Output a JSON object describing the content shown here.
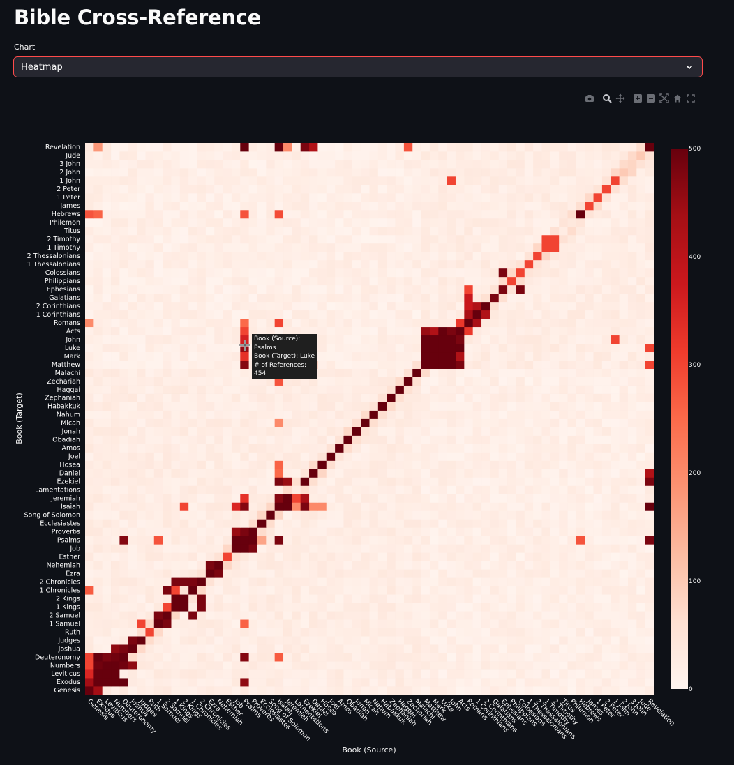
{
  "page": {
    "title": "Bible Cross-Reference"
  },
  "controls": {
    "chart_select": {
      "label": "Chart",
      "value": "Heatmap"
    }
  },
  "modebar": {
    "icons": [
      "camera-icon",
      "zoom-icon",
      "pan-icon",
      "zoom-in-icon",
      "zoom-out-icon",
      "autoscale-icon",
      "home-icon",
      "fullscreen-icon"
    ]
  },
  "tooltip": {
    "source_line": "Book (Source): Psalms",
    "target_line": "Book (Target): Luke",
    "count_line": "# of References: 454"
  },
  "chart_data": {
    "type": "heatmap",
    "xlabel": "Book (Source)",
    "ylabel": "Book (Target)",
    "books": [
      "Genesis",
      "Exodus",
      "Leviticus",
      "Numbers",
      "Deuteronomy",
      "Joshua",
      "Judges",
      "Ruth",
      "1 Samuel",
      "2 Samuel",
      "1 Kings",
      "2 Kings",
      "1 Chronicles",
      "2 Chronicles",
      "Ezra",
      "Nehemiah",
      "Esther",
      "Job",
      "Psalms",
      "Proverbs",
      "Ecclesiastes",
      "Song of Solomon",
      "Isaiah",
      "Jeremiah",
      "Lamentations",
      "Ezekiel",
      "Daniel",
      "Hosea",
      "Joel",
      "Amos",
      "Obadiah",
      "Jonah",
      "Micah",
      "Nahum",
      "Habakkuk",
      "Zephaniah",
      "Haggai",
      "Zechariah",
      "Malachi",
      "Matthew",
      "Mark",
      "Luke",
      "John",
      "Acts",
      "Romans",
      "1 Corinthians",
      "2 Corinthians",
      "Galatians",
      "Ephesians",
      "Philippians",
      "Colossians",
      "1 Thessalonians",
      "2 Thessalonians",
      "1 Timothy",
      "2 Timothy",
      "Titus",
      "Philemon",
      "Hebrews",
      "James",
      "1 Peter",
      "2 Peter",
      "1 John",
      "2 John",
      "3 John",
      "Jude",
      "Revelation"
    ],
    "zmin": 0,
    "zmax": 500,
    "colorbar_ticks": [
      0,
      100,
      200,
      300,
      400,
      500
    ],
    "colorscale": [
      "#fff5f0",
      "#fee0d2",
      "#fcbba1",
      "#fc9272",
      "#fb6a4a",
      "#ef3b2c",
      "#cb181d",
      "#a50f15",
      "#67000d"
    ],
    "grid": false,
    "cells": [
      [
        "Psalms",
        "Luke",
        454
      ],
      [
        "Psalms",
        "Mark",
        330
      ],
      [
        "Psalms",
        "Matthew",
        470
      ],
      [
        "Psalms",
        "John",
        360
      ],
      [
        "Psalms",
        "Acts",
        300
      ],
      [
        "Psalms",
        "Romans",
        250
      ],
      [
        "Psalms",
        "Hebrews",
        280
      ],
      [
        "Psalms",
        "Revelation",
        500
      ],
      [
        "Psalms",
        "Job",
        500
      ],
      [
        "Psalms",
        "Proverbs",
        480
      ],
      [
        "Psalms",
        "Isaiah",
        470
      ],
      [
        "Psalms",
        "Jeremiah",
        330
      ],
      [
        "Psalms",
        "Psalms",
        500
      ],
      [
        "Psalms",
        "1 Samuel",
        260
      ],
      [
        "Psalms",
        "Deuteronomy",
        470
      ],
      [
        "Psalms",
        "Exodus",
        460
      ],
      [
        "Job",
        "Psalms",
        500
      ],
      [
        "Job",
        "Proverbs",
        450
      ],
      [
        "Job",
        "Job",
        500
      ],
      [
        "Job",
        "Isaiah",
        350
      ],
      [
        "Proverbs",
        "Psalms",
        500
      ],
      [
        "Proverbs",
        "Job",
        480
      ],
      [
        "Proverbs",
        "Proverbs",
        500
      ],
      [
        "Ecclesiastes",
        "Psalms",
        160
      ],
      [
        "Ecclesiastes",
        "Ecclesiastes",
        500
      ],
      [
        "Song of Solomon",
        "Song of Solomon",
        500
      ],
      [
        "Song of Solomon",
        "Isaiah",
        80
      ],
      [
        "Isaiah",
        "Isaiah",
        500
      ],
      [
        "Isaiah",
        "Jeremiah",
        470
      ],
      [
        "Isaiah",
        "Ezekiel",
        480
      ],
      [
        "Isaiah",
        "Psalms",
        480
      ],
      [
        "Isaiah",
        "Revelation",
        500
      ],
      [
        "Isaiah",
        "Matthew",
        300
      ],
      [
        "Isaiah",
        "Romans",
        300
      ],
      [
        "Isaiah",
        "Luke",
        280
      ],
      [
        "Isaiah",
        "John",
        260
      ],
      [
        "Isaiah",
        "Deuteronomy",
        270
      ],
      [
        "Isaiah",
        "Zechariah",
        280
      ],
      [
        "Isaiah",
        "Hebrews",
        290
      ],
      [
        "Isaiah",
        "Micah",
        200
      ],
      [
        "Isaiah",
        "Daniel",
        250
      ],
      [
        "Isaiah",
        "Hosea",
        260
      ],
      [
        "Jeremiah",
        "Isaiah",
        500
      ],
      [
        "Jeremiah",
        "Jeremiah",
        500
      ],
      [
        "Jeremiah",
        "Ezekiel",
        450
      ],
      [
        "Jeremiah",
        "Revelation",
        200
      ],
      [
        "Lamentations",
        "Jeremiah",
        300
      ],
      [
        "Lamentations",
        "Isaiah",
        200
      ],
      [
        "Ezekiel",
        "Isaiah",
        480
      ],
      [
        "Ezekiel",
        "Jeremiah",
        430
      ],
      [
        "Ezekiel",
        "Ezekiel",
        500
      ],
      [
        "Ezekiel",
        "Revelation",
        480
      ],
      [
        "Daniel",
        "Daniel",
        500
      ],
      [
        "Daniel",
        "Revelation",
        420
      ],
      [
        "Daniel",
        "Matthew",
        150
      ],
      [
        "Daniel",
        "Isaiah",
        200
      ],
      [
        "Hosea",
        "Hosea",
        500
      ],
      [
        "Hosea",
        "Isaiah",
        200
      ],
      [
        "Joel",
        "Joel",
        500
      ],
      [
        "Amos",
        "Amos",
        500
      ],
      [
        "Obadiah",
        "Obadiah",
        500
      ],
      [
        "Jonah",
        "Jonah",
        500
      ],
      [
        "Micah",
        "Micah",
        500
      ],
      [
        "Nahum",
        "Nahum",
        500
      ],
      [
        "Habakkuk",
        "Habakkuk",
        500
      ],
      [
        "Zephaniah",
        "Zephaniah",
        500
      ],
      [
        "Haggai",
        "Haggai",
        500
      ],
      [
        "Zechariah",
        "Zechariah",
        500
      ],
      [
        "Zechariah",
        "Revelation",
        280
      ],
      [
        "Malachi",
        "Malachi",
        500
      ],
      [
        "Genesis",
        "Genesis",
        500
      ],
      [
        "Genesis",
        "Exodus",
        440
      ],
      [
        "Genesis",
        "Leviticus",
        350
      ],
      [
        "Genesis",
        "Numbers",
        300
      ],
      [
        "Genesis",
        "Deuteronomy",
        300
      ],
      [
        "Genesis",
        "1 Chronicles",
        270
      ],
      [
        "Genesis",
        "Hebrews",
        280
      ],
      [
        "Genesis",
        "Romans",
        200
      ],
      [
        "Exodus",
        "Exodus",
        500
      ],
      [
        "Exodus",
        "Leviticus",
        500
      ],
      [
        "Exodus",
        "Numbers",
        490
      ],
      [
        "Exodus",
        "Deuteronomy",
        500
      ],
      [
        "Exodus",
        "Genesis",
        440
      ],
      [
        "Exodus",
        "Hebrews",
        260
      ],
      [
        "Exodus",
        "Revelation",
        180
      ],
      [
        "Leviticus",
        "Leviticus",
        500
      ],
      [
        "Leviticus",
        "Exodus",
        500
      ],
      [
        "Leviticus",
        "Numbers",
        500
      ],
      [
        "Leviticus",
        "Deuteronomy",
        480
      ],
      [
        "Numbers",
        "Numbers",
        500
      ],
      [
        "Numbers",
        "Deuteronomy",
        490
      ],
      [
        "Numbers",
        "Exodus",
        500
      ],
      [
        "Numbers",
        "Leviticus",
        500
      ],
      [
        "Numbers",
        "Joshua",
        460
      ],
      [
        "Deuteronomy",
        "Deuteronomy",
        500
      ],
      [
        "Deuteronomy",
        "Joshua",
        480
      ],
      [
        "Deuteronomy",
        "Exodus",
        500
      ],
      [
        "Deuteronomy",
        "Psalms",
        470
      ],
      [
        "Deuteronomy",
        "Numbers",
        490
      ],
      [
        "Joshua",
        "Joshua",
        500
      ],
      [
        "Joshua",
        "Judges",
        480
      ],
      [
        "Joshua",
        "Numbers",
        460
      ],
      [
        "Judges",
        "Judges",
        500
      ],
      [
        "Judges",
        "1 Samuel",
        300
      ],
      [
        "Ruth",
        "Ruth",
        300
      ],
      [
        "1 Samuel",
        "1 Samuel",
        500
      ],
      [
        "1 Samuel",
        "2 Samuel",
        480
      ],
      [
        "1 Samuel",
        "Psalms",
        280
      ],
      [
        "2 Samuel",
        "2 Samuel",
        500
      ],
      [
        "2 Samuel",
        "1 Samuel",
        480
      ],
      [
        "2 Samuel",
        "1 Chronicles",
        480
      ],
      [
        "2 Samuel",
        "1 Kings",
        300
      ],
      [
        "1 Kings",
        "1 Kings",
        500
      ],
      [
        "1 Kings",
        "2 Kings",
        500
      ],
      [
        "1 Kings",
        "2 Chronicles",
        480
      ],
      [
        "1 Kings",
        "1 Chronicles",
        300
      ],
      [
        "2 Kings",
        "2 Kings",
        500
      ],
      [
        "2 Kings",
        "1 Kings",
        500
      ],
      [
        "2 Kings",
        "2 Chronicles",
        480
      ],
      [
        "2 Kings",
        "Isaiah",
        300
      ],
      [
        "1 Chronicles",
        "1 Chronicles",
        500
      ],
      [
        "1 Chronicles",
        "2 Samuel",
        480
      ],
      [
        "1 Chronicles",
        "2 Chronicles",
        480
      ],
      [
        "2 Chronicles",
        "2 Chronicles",
        500
      ],
      [
        "2 Chronicles",
        "1 Kings",
        480
      ],
      [
        "2 Chronicles",
        "2 Kings",
        480
      ],
      [
        "Ezra",
        "Ezra",
        500
      ],
      [
        "Ezra",
        "Nehemiah",
        480
      ],
      [
        "Nehemiah",
        "Nehemiah",
        500
      ],
      [
        "Nehemiah",
        "Ezra",
        480
      ],
      [
        "Esther",
        "Esther",
        300
      ],
      [
        "Matthew",
        "Matthew",
        500
      ],
      [
        "Matthew",
        "Mark",
        500
      ],
      [
        "Matthew",
        "Luke",
        500
      ],
      [
        "Matthew",
        "John",
        500
      ],
      [
        "Matthew",
        "Acts",
        450
      ],
      [
        "Mark",
        "Matthew",
        500
      ],
      [
        "Mark",
        "Mark",
        500
      ],
      [
        "Mark",
        "Luke",
        500
      ],
      [
        "Mark",
        "John",
        500
      ],
      [
        "Mark",
        "Acts",
        420
      ],
      [
        "Luke",
        "Matthew",
        500
      ],
      [
        "Luke",
        "Mark",
        500
      ],
      [
        "Luke",
        "Luke",
        500
      ],
      [
        "Luke",
        "John",
        500
      ],
      [
        "Luke",
        "Acts",
        500
      ],
      [
        "John",
        "Matthew",
        500
      ],
      [
        "John",
        "Mark",
        500
      ],
      [
        "John",
        "Luke",
        500
      ],
      [
        "John",
        "John",
        500
      ],
      [
        "John",
        "Acts",
        480
      ],
      [
        "John",
        "1 John",
        300
      ],
      [
        "Acts",
        "Matthew",
        480
      ],
      [
        "Acts",
        "Mark",
        420
      ],
      [
        "Acts",
        "Luke",
        500
      ],
      [
        "Acts",
        "John",
        480
      ],
      [
        "Acts",
        "Acts",
        500
      ],
      [
        "Acts",
        "Romans",
        320
      ],
      [
        "Romans",
        "Romans",
        500
      ],
      [
        "Romans",
        "1 Corinthians",
        430
      ],
      [
        "Romans",
        "2 Corinthians",
        380
      ],
      [
        "Romans",
        "Galatians",
        380
      ],
      [
        "Romans",
        "Acts",
        320
      ],
      [
        "Romans",
        "Ephesians",
        300
      ],
      [
        "1 Corinthians",
        "1 Corinthians",
        500
      ],
      [
        "1 Corinthians",
        "2 Corinthians",
        420
      ],
      [
        "1 Corinthians",
        "Romans",
        430
      ],
      [
        "2 Corinthians",
        "2 Corinthians",
        500
      ],
      [
        "2 Corinthians",
        "1 Corinthians",
        420
      ],
      [
        "Galatians",
        "Galatians",
        480
      ],
      [
        "Ephesians",
        "Ephesians",
        480
      ],
      [
        "Ephesians",
        "Colossians",
        480
      ],
      [
        "Philippians",
        "Philippians",
        300
      ],
      [
        "Colossians",
        "Colossians",
        300
      ],
      [
        "Colossians",
        "Ephesians",
        480
      ],
      [
        "1 Thessalonians",
        "1 Thessalonians",
        300
      ],
      [
        "2 Thessalonians",
        "2 Thessalonians",
        300
      ],
      [
        "1 Timothy",
        "1 Timothy",
        300
      ],
      [
        "1 Timothy",
        "2 Timothy",
        300
      ],
      [
        "2 Timothy",
        "2 Timothy",
        300
      ],
      [
        "2 Timothy",
        "1 Timothy",
        300
      ],
      [
        "Hebrews",
        "Hebrews",
        500
      ],
      [
        "Hebrews",
        "Psalms",
        280
      ],
      [
        "James",
        "James",
        300
      ],
      [
        "1 Peter",
        "1 Peter",
        300
      ],
      [
        "2 Peter",
        "2 Peter",
        300
      ],
      [
        "1 John",
        "1 John",
        300
      ],
      [
        "1 John",
        "John",
        300
      ],
      [
        "2 John",
        "2 John",
        100
      ],
      [
        "3 John",
        "3 John",
        80
      ],
      [
        "Jude",
        "Jude",
        100
      ],
      [
        "Revelation",
        "Revelation",
        500
      ],
      [
        "Revelation",
        "Isaiah",
        500
      ],
      [
        "Revelation",
        "Psalms",
        480
      ],
      [
        "Revelation",
        "Ezekiel",
        480
      ],
      [
        "Revelation",
        "Daniel",
        420
      ],
      [
        "Revelation",
        "Matthew",
        300
      ],
      [
        "Revelation",
        "Luke",
        300
      ]
    ]
  }
}
